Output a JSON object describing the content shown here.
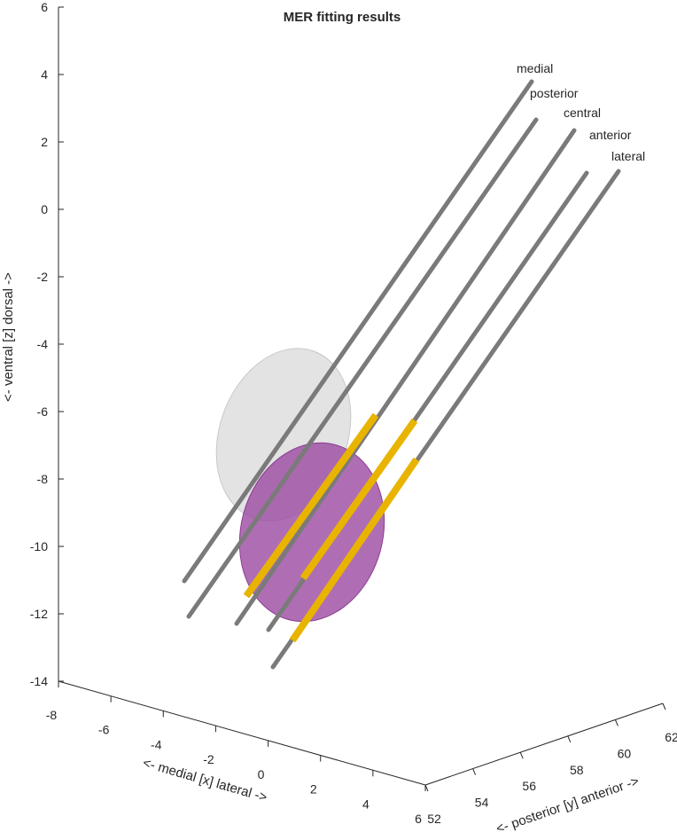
{
  "chart_data": {
    "type": "surface3d",
    "title": "MER fitting results",
    "xlabel": "<- medial [x] lateral ->",
    "ylabel": "<- posterior [y] anterior ->",
    "zlabel": "<- ventral [z] dorsal ->",
    "xlim": [
      -8,
      6
    ],
    "xticks": [
      -8,
      -6,
      -4,
      -2,
      0,
      2,
      4,
      6
    ],
    "ylim": [
      52,
      62
    ],
    "yticks": [
      52,
      54,
      56,
      58,
      60,
      62
    ],
    "zlim": [
      -14,
      6
    ],
    "zticks": [
      -14,
      -12,
      -10,
      -8,
      -6,
      -4,
      -2,
      0,
      2,
      4,
      6
    ],
    "annotations": [
      "medial",
      "posterior",
      "central",
      "anterior",
      "lateral"
    ]
  }
}
